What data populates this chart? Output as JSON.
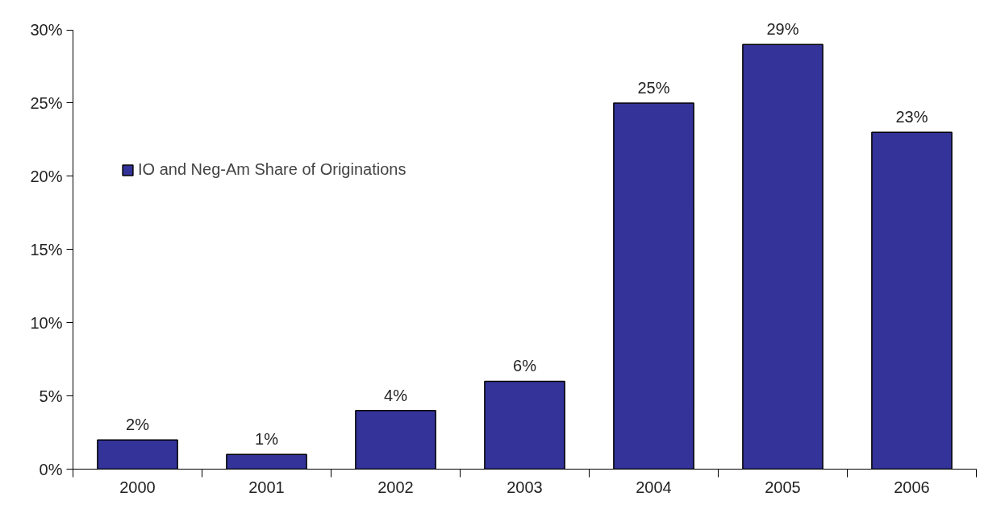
{
  "chart_data": {
    "type": "bar",
    "categories": [
      "2000",
      "2001",
      "2002",
      "2003",
      "2004",
      "2005",
      "2006"
    ],
    "series": [
      {
        "name": "IO and Neg-Am Share of Originations",
        "color": "#333399",
        "values": [
          2,
          1,
          4,
          6,
          25,
          29,
          23
        ],
        "value_labels": [
          "2%",
          "1%",
          "4%",
          "6%",
          "25%",
          "29%",
          "23%"
        ]
      }
    ],
    "ylim": [
      0,
      30
    ],
    "yticks": [
      {
        "value": 0,
        "label": "0%"
      },
      {
        "value": 5,
        "label": "5%"
      },
      {
        "value": 10,
        "label": "10%"
      },
      {
        "value": 15,
        "label": "15%"
      },
      {
        "value": 20,
        "label": "20%"
      },
      {
        "value": 25,
        "label": "25%"
      },
      {
        "value": 30,
        "label": "30%"
      }
    ],
    "grid": false,
    "legend": "top left"
  }
}
